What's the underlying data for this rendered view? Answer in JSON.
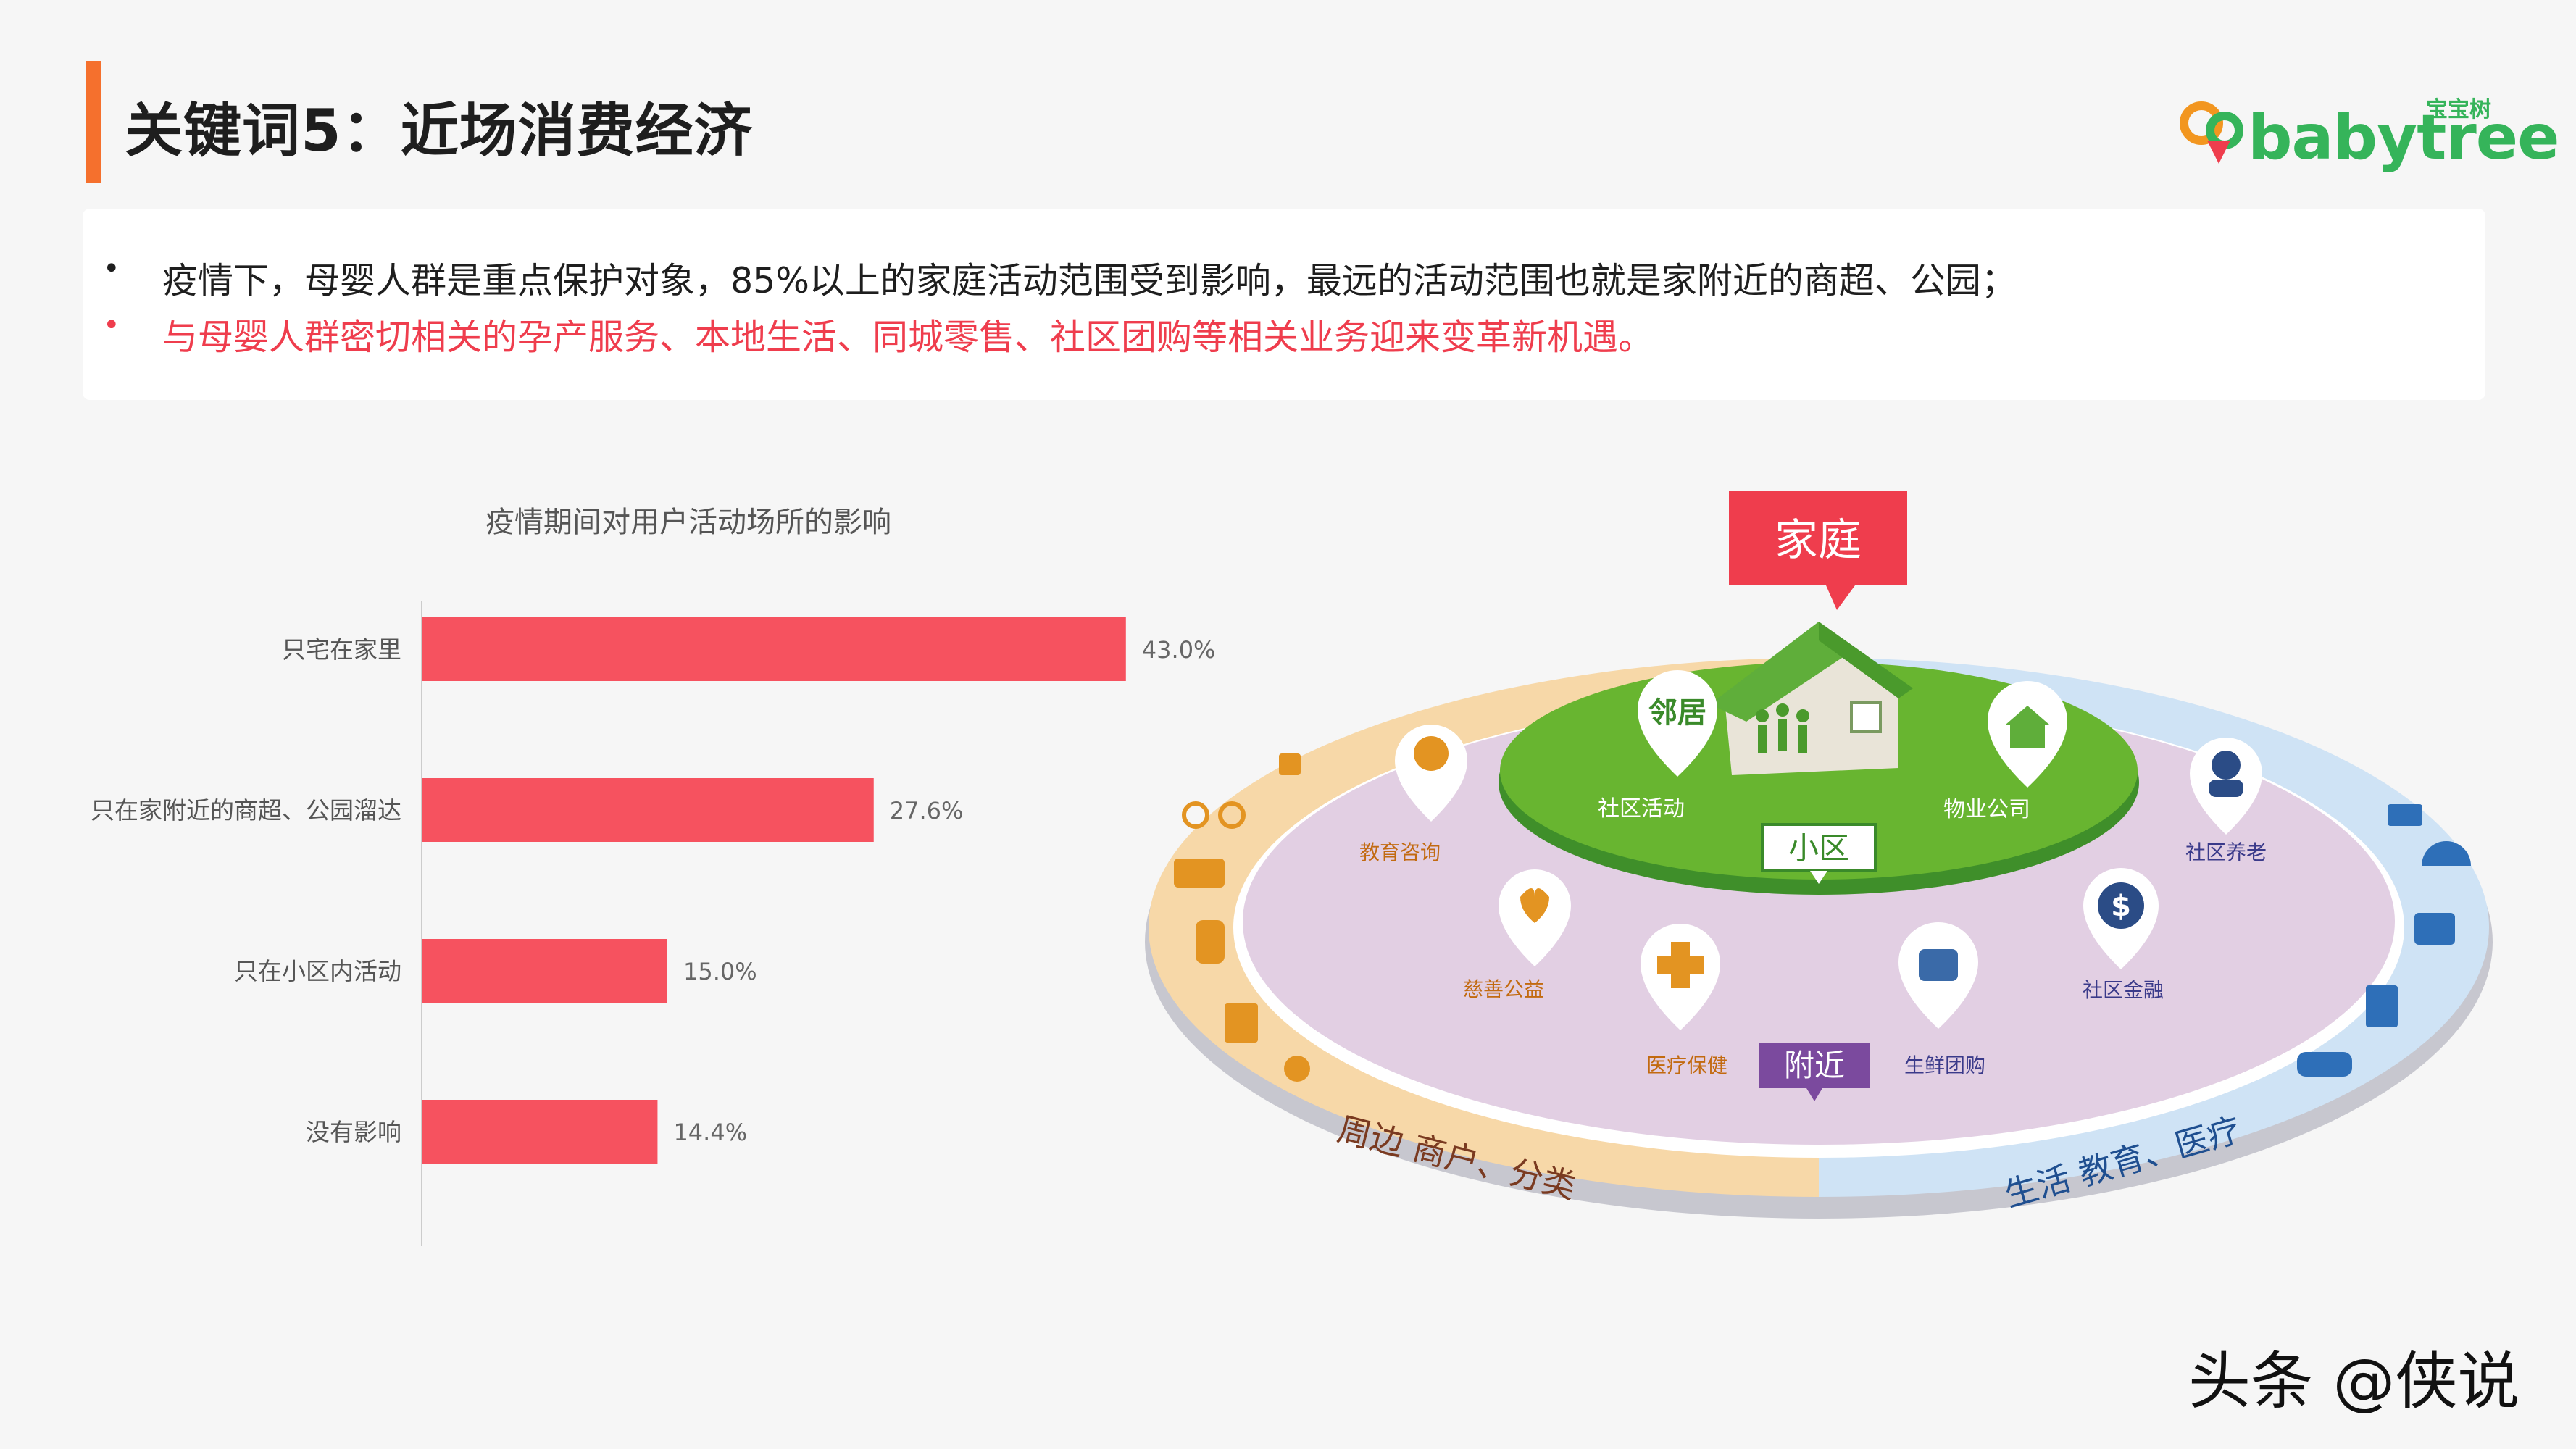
{
  "title": "关键词5：近场消费经济",
  "logo": {
    "text_en": "babytree",
    "text_cn": "宝宝树"
  },
  "bullets": [
    "疫情下，母婴人群是重点保护对象，85%以上的家庭活动范围受到影响，最远的活动范围也就是家附近的商超、公园；",
    "与母婴人群密切相关的孕产服务、本地生活、同城零售、社区团购等相关业务迎来变革新机遇。"
  ],
  "colors": {
    "accent": "#f5702d",
    "bar": "#f6525f",
    "red_text": "#ef3d4d",
    "green": "#35b45a",
    "purple_label": "#7b4a9e"
  },
  "chart_data": {
    "type": "bar",
    "orientation": "horizontal",
    "title": "疫情期间对用户活动场所的影响",
    "categories": [
      "只宅在家里",
      "只在家附近的商超、公园溜达",
      "只在小区内活动",
      "没有影响"
    ],
    "values": [
      43.0,
      27.6,
      15.0,
      14.4
    ],
    "value_labels": [
      "43.0%",
      "27.6%",
      "15.0%",
      "14.4%"
    ],
    "unit": "%",
    "xlim": [
      0,
      50
    ],
    "grid": false,
    "legend": "none"
  },
  "diagram": {
    "home_label": "家庭",
    "community_label": "小区",
    "nearby_label": "附近",
    "community_items": [
      "邻居",
      "社区活动",
      "物业公司"
    ],
    "nearby_items": [
      "教育咨询",
      "慈善公益",
      "医疗保健",
      "生鲜团购",
      "社区金融",
      "社区养老"
    ],
    "outer_left_label": "周边 商户、分类",
    "outer_right_label": "生活 教育、医疗"
  },
  "watermark": "头条 @侠说"
}
